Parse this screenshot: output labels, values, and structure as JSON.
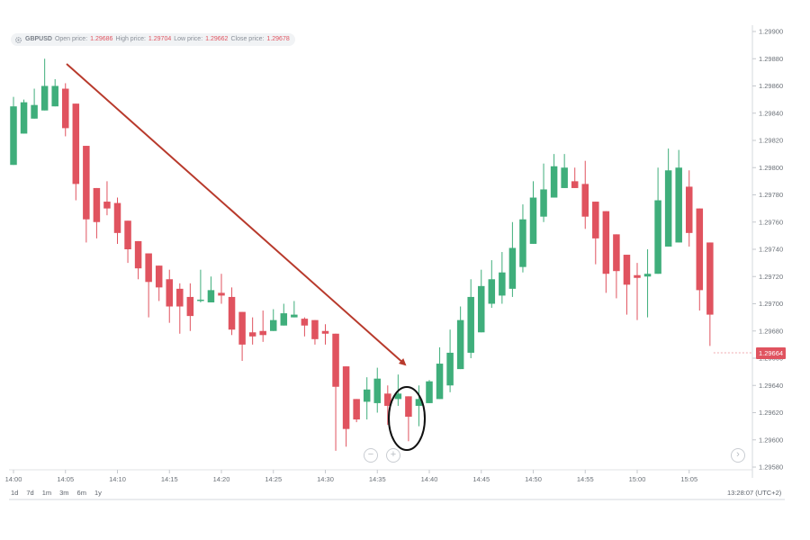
{
  "header": {
    "symbol": "GBPUSD",
    "open_label": "Open price:",
    "open_value": "1.29686",
    "high_label": "High price:",
    "high_value": "1.29704",
    "low_label": "Low price:",
    "low_value": "1.29662",
    "close_label": "Close price:",
    "close_value": "1.29678",
    "settings_icon": "gear-icon"
  },
  "colors": {
    "bull": "#3fae7b",
    "bear": "#e0535f",
    "arrow": "#b83a2c",
    "grid": "#e6e8eb",
    "axis_text": "#6b7178"
  },
  "current_price_label": "1.29664",
  "range_buttons": [
    "1d",
    "7d",
    "1m",
    "3m",
    "6m",
    "1y"
  ],
  "clock": "13:28:07 (UTC+2)",
  "zoom": {
    "out_icon": "minus-icon",
    "in_icon": "plus-icon",
    "next_icon": "chevron-right-icon",
    "out": "−",
    "in": "+",
    "next": "›"
  },
  "chart_data": {
    "type": "candlestick",
    "symbol": "GBPUSD",
    "ylim": [
      1.2957,
      1.299
    ],
    "y_ticks": [
      "1.29580",
      "1.29600",
      "1.29620",
      "1.29640",
      "1.29660",
      "1.29680",
      "1.29700",
      "1.29720",
      "1.29740",
      "1.29760",
      "1.29780",
      "1.29800",
      "1.29820",
      "1.29840",
      "1.29860",
      "1.29880",
      "1.29900"
    ],
    "x_ticks": [
      {
        "label": "14:00",
        "t": 0
      },
      {
        "label": "14:05",
        "t": 5
      },
      {
        "label": "14:10",
        "t": 10
      },
      {
        "label": "14:15",
        "t": 15
      },
      {
        "label": "14:20",
        "t": 20
      },
      {
        "label": "14:25",
        "t": 25
      },
      {
        "label": "14:30",
        "t": 30
      },
      {
        "label": "14:35",
        "t": 35
      },
      {
        "label": "14:40",
        "t": 40
      },
      {
        "label": "14:45",
        "t": 45
      },
      {
        "label": "14:50",
        "t": 50
      },
      {
        "label": "14:55",
        "t": 55
      },
      {
        "label": "15:00",
        "t": 60
      },
      {
        "label": "15:05",
        "t": 65
      }
    ],
    "xlim": [
      0,
      68
    ],
    "candles": [
      {
        "t": 0,
        "o": 1.29802,
        "h": 1.29852,
        "l": 1.29802,
        "c": 1.29845
      },
      {
        "t": 1,
        "o": 1.29825,
        "h": 1.2985,
        "l": 1.29825,
        "c": 1.29848
      },
      {
        "t": 2,
        "o": 1.29836,
        "h": 1.29858,
        "l": 1.29836,
        "c": 1.29846
      },
      {
        "t": 3,
        "o": 1.29842,
        "h": 1.2988,
        "l": 1.29842,
        "c": 1.2986
      },
      {
        "t": 4,
        "o": 1.29845,
        "h": 1.29865,
        "l": 1.29845,
        "c": 1.2986
      },
      {
        "t": 5,
        "o": 1.29858,
        "h": 1.29862,
        "l": 1.29823,
        "c": 1.29829
      },
      {
        "t": 6,
        "o": 1.29847,
        "h": 1.29847,
        "l": 1.29776,
        "c": 1.29788
      },
      {
        "t": 7,
        "o": 1.29816,
        "h": 1.29816,
        "l": 1.29745,
        "c": 1.29762
      },
      {
        "t": 8,
        "o": 1.29785,
        "h": 1.29785,
        "l": 1.29748,
        "c": 1.2976
      },
      {
        "t": 9,
        "o": 1.29775,
        "h": 1.2979,
        "l": 1.29765,
        "c": 1.2977
      },
      {
        "t": 10,
        "o": 1.29774,
        "h": 1.29778,
        "l": 1.29744,
        "c": 1.29752
      },
      {
        "t": 11,
        "o": 1.29761,
        "h": 1.29761,
        "l": 1.2973,
        "c": 1.2974
      },
      {
        "t": 12,
        "o": 1.29746,
        "h": 1.29746,
        "l": 1.29718,
        "c": 1.29726
      },
      {
        "t": 13,
        "o": 1.29737,
        "h": 1.29737,
        "l": 1.2969,
        "c": 1.29716
      },
      {
        "t": 14,
        "o": 1.29728,
        "h": 1.29728,
        "l": 1.29702,
        "c": 1.29712
      },
      {
        "t": 15,
        "o": 1.29718,
        "h": 1.29725,
        "l": 1.29686,
        "c": 1.29698
      },
      {
        "t": 16,
        "o": 1.29711,
        "h": 1.29715,
        "l": 1.29678,
        "c": 1.29698
      },
      {
        "t": 17,
        "o": 1.29705,
        "h": 1.29715,
        "l": 1.2968,
        "c": 1.29691
      },
      {
        "t": 18,
        "o": 1.29703,
        "h": 1.29725,
        "l": 1.29701,
        "c": 1.29703
      },
      {
        "t": 19,
        "o": 1.29701,
        "h": 1.2972,
        "l": 1.29701,
        "c": 1.2971
      },
      {
        "t": 20,
        "o": 1.29708,
        "h": 1.29722,
        "l": 1.297,
        "c": 1.29706
      },
      {
        "t": 21,
        "o": 1.29705,
        "h": 1.29712,
        "l": 1.29677,
        "c": 1.29681
      },
      {
        "t": 22,
        "o": 1.29694,
        "h": 1.29694,
        "l": 1.29658,
        "c": 1.2967
      },
      {
        "t": 23,
        "o": 1.29679,
        "h": 1.2969,
        "l": 1.2967,
        "c": 1.29676
      },
      {
        "t": 24,
        "o": 1.2968,
        "h": 1.29695,
        "l": 1.29672,
        "c": 1.29677
      },
      {
        "t": 25,
        "o": 1.2968,
        "h": 1.29696,
        "l": 1.2968,
        "c": 1.29688
      },
      {
        "t": 26,
        "o": 1.29684,
        "h": 1.297,
        "l": 1.29684,
        "c": 1.29693
      },
      {
        "t": 27,
        "o": 1.2969,
        "h": 1.29702,
        "l": 1.2969,
        "c": 1.29692
      },
      {
        "t": 28,
        "o": 1.29689,
        "h": 1.2969,
        "l": 1.29676,
        "c": 1.29684
      },
      {
        "t": 29,
        "o": 1.29688,
        "h": 1.29688,
        "l": 1.2967,
        "c": 1.29674
      },
      {
        "t": 30,
        "o": 1.2968,
        "h": 1.29685,
        "l": 1.2967,
        "c": 1.29678
      },
      {
        "t": 31,
        "o": 1.29678,
        "h": 1.29678,
        "l": 1.29592,
        "c": 1.29639
      },
      {
        "t": 32,
        "o": 1.29654,
        "h": 1.29654,
        "l": 1.29595,
        "c": 1.29608
      },
      {
        "t": 33,
        "o": 1.2963,
        "h": 1.2963,
        "l": 1.29613,
        "c": 1.29615
      },
      {
        "t": 34,
        "o": 1.29628,
        "h": 1.29646,
        "l": 1.29615,
        "c": 1.29637
      },
      {
        "t": 35,
        "o": 1.29627,
        "h": 1.29653,
        "l": 1.2962,
        "c": 1.29645
      },
      {
        "t": 36,
        "o": 1.29634,
        "h": 1.2964,
        "l": 1.29611,
        "c": 1.29625
      },
      {
        "t": 37,
        "o": 1.2963,
        "h": 1.29648,
        "l": 1.29625,
        "c": 1.29634
      },
      {
        "t": 38,
        "o": 1.29632,
        "h": 1.29632,
        "l": 1.29599,
        "c": 1.29617
      },
      {
        "t": 39,
        "o": 1.29625,
        "h": 1.2964,
        "l": 1.2961,
        "c": 1.2963
      },
      {
        "t": 40,
        "o": 1.29627,
        "h": 1.29644,
        "l": 1.29627,
        "c": 1.29643
      },
      {
        "t": 41,
        "o": 1.2963,
        "h": 1.29668,
        "l": 1.2963,
        "c": 1.29656
      },
      {
        "t": 42,
        "o": 1.2964,
        "h": 1.29681,
        "l": 1.29635,
        "c": 1.29664
      },
      {
        "t": 43,
        "o": 1.29652,
        "h": 1.29698,
        "l": 1.29652,
        "c": 1.29688
      },
      {
        "t": 44,
        "o": 1.29664,
        "h": 1.29718,
        "l": 1.2966,
        "c": 1.29705
      },
      {
        "t": 45,
        "o": 1.29679,
        "h": 1.29725,
        "l": 1.29679,
        "c": 1.29713
      },
      {
        "t": 46,
        "o": 1.297,
        "h": 1.29732,
        "l": 1.29697,
        "c": 1.29718
      },
      {
        "t": 47,
        "o": 1.29706,
        "h": 1.29738,
        "l": 1.297,
        "c": 1.29723
      },
      {
        "t": 48,
        "o": 1.29711,
        "h": 1.2976,
        "l": 1.29705,
        "c": 1.29741
      },
      {
        "t": 49,
        "o": 1.29727,
        "h": 1.29773,
        "l": 1.29723,
        "c": 1.29762
      },
      {
        "t": 50,
        "o": 1.29744,
        "h": 1.2979,
        "l": 1.29744,
        "c": 1.29778
      },
      {
        "t": 51,
        "o": 1.29764,
        "h": 1.29803,
        "l": 1.2976,
        "c": 1.29784
      },
      {
        "t": 52,
        "o": 1.29778,
        "h": 1.2981,
        "l": 1.29778,
        "c": 1.29801
      },
      {
        "t": 53,
        "o": 1.29785,
        "h": 1.2981,
        "l": 1.29785,
        "c": 1.298
      },
      {
        "t": 54,
        "o": 1.2979,
        "h": 1.298,
        "l": 1.29785,
        "c": 1.29785
      },
      {
        "t": 55,
        "o": 1.29788,
        "h": 1.29805,
        "l": 1.29755,
        "c": 1.29764
      },
      {
        "t": 56,
        "o": 1.29775,
        "h": 1.29775,
        "l": 1.29729,
        "c": 1.29748
      },
      {
        "t": 57,
        "o": 1.29768,
        "h": 1.29768,
        "l": 1.29708,
        "c": 1.29722
      },
      {
        "t": 58,
        "o": 1.29751,
        "h": 1.29751,
        "l": 1.29704,
        "c": 1.29724
      },
      {
        "t": 59,
        "o": 1.29736,
        "h": 1.29736,
        "l": 1.29692,
        "c": 1.29714
      },
      {
        "t": 60,
        "o": 1.29721,
        "h": 1.2973,
        "l": 1.29688,
        "c": 1.29719
      },
      {
        "t": 61,
        "o": 1.2972,
        "h": 1.2974,
        "l": 1.2969,
        "c": 1.29722
      },
      {
        "t": 62,
        "o": 1.29722,
        "h": 1.298,
        "l": 1.29722,
        "c": 1.29776
      },
      {
        "t": 63,
        "o": 1.29742,
        "h": 1.29814,
        "l": 1.29742,
        "c": 1.29798
      },
      {
        "t": 64,
        "o": 1.29745,
        "h": 1.29813,
        "l": 1.29745,
        "c": 1.298
      },
      {
        "t": 65,
        "o": 1.29786,
        "h": 1.29798,
        "l": 1.29742,
        "c": 1.29752
      },
      {
        "t": 66,
        "o": 1.2977,
        "h": 1.2977,
        "l": 1.29695,
        "c": 1.2971
      },
      {
        "t": 67,
        "o": 1.29745,
        "h": 1.29745,
        "l": 1.29669,
        "c": 1.29692
      }
    ]
  }
}
